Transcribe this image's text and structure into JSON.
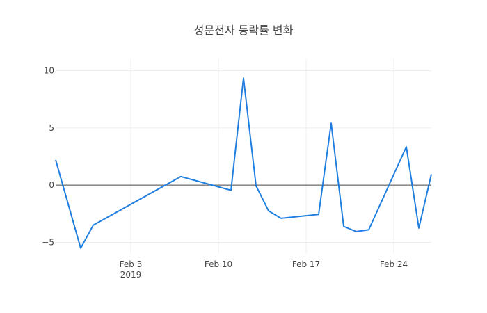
{
  "chart_data": {
    "type": "line",
    "title": "성문전자 등락률 변화",
    "xlabel": "",
    "ylabel": "",
    "x_type": "date",
    "xlim": [
      "2019-01-28",
      "2019-02-27"
    ],
    "ylim": [
      -6,
      11
    ],
    "grid": true,
    "legend": "none",
    "x_ticks": [
      {
        "date": "2019-02-03",
        "label": "Feb 3",
        "sublabel": "2019"
      },
      {
        "date": "2019-02-10",
        "label": "Feb 10",
        "sublabel": ""
      },
      {
        "date": "2019-02-17",
        "label": "Feb 17",
        "sublabel": ""
      },
      {
        "date": "2019-02-24",
        "label": "Feb 24",
        "sublabel": ""
      }
    ],
    "y_ticks": [
      {
        "value": -5,
        "label": "−5"
      },
      {
        "value": 0,
        "label": "0"
      },
      {
        "value": 5,
        "label": "5"
      },
      {
        "value": 10,
        "label": "10"
      }
    ],
    "line_color": "#1f7fe0",
    "series": [
      {
        "x": [
          "2019-01-28",
          "2019-01-30",
          "2019-01-31",
          "2019-02-07",
          "2019-02-11",
          "2019-02-12",
          "2019-02-13",
          "2019-02-14",
          "2019-02-15",
          "2019-02-18",
          "2019-02-19",
          "2019-02-20",
          "2019-02-21",
          "2019-02-22",
          "2019-02-25",
          "2019-02-26",
          "2019-02-27"
        ],
        "values": [
          2.2,
          -5.5,
          -3.5,
          0.75,
          -0.45,
          9.35,
          -0.05,
          -2.25,
          -2.9,
          -2.55,
          5.4,
          -3.6,
          -4.05,
          -3.9,
          3.35,
          -3.75,
          0.95
        ]
      }
    ]
  }
}
